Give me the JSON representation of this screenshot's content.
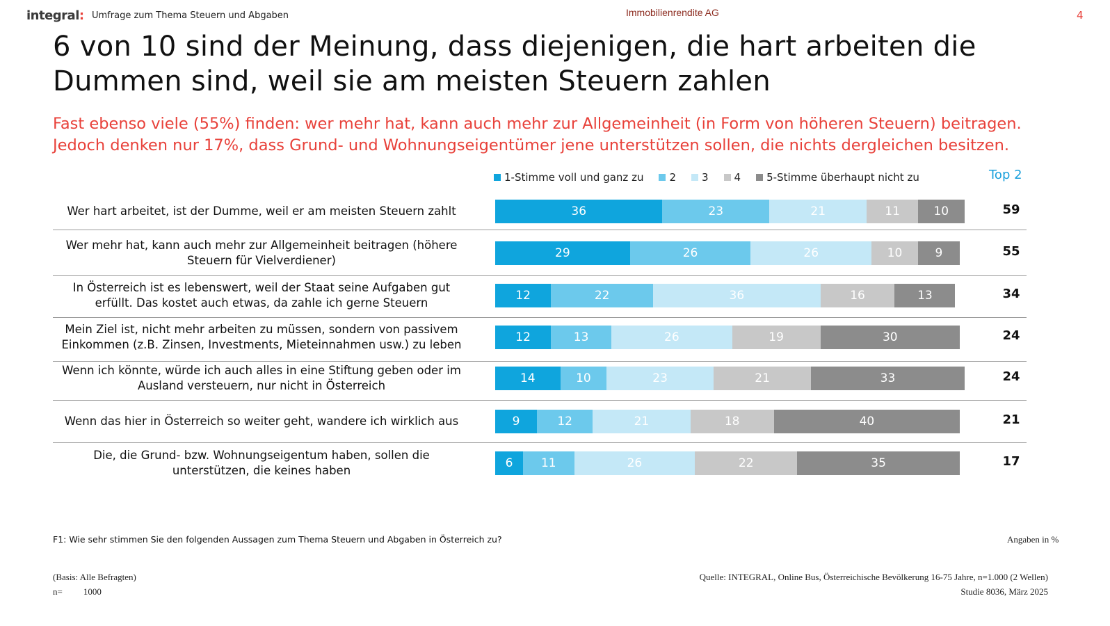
{
  "header": {
    "logo": "integral",
    "logo_dot": ":",
    "survey_title": "Umfrage zum Thema Steuern und Abgaben",
    "company": "Immobilienrendite AG",
    "page_number": "4"
  },
  "title_lines": [
    "6 von 10 sind der Meinung, dass diejenigen, die hart arbeiten die",
    "Dummen sind, weil sie am meisten Steuern zahlen"
  ],
  "subtitle_lines": [
    "Fast ebenso viele (55%) finden: wer mehr hat, kann auch mehr zur Allgemeinheit (in Form von höheren Steuern) beitragen.",
    "Jedoch denken nur 17%, dass Grund- und Wohnungseigentümer jene unterstützen sollen, die nichts dergleichen besitzen."
  ],
  "colors": {
    "s1": "#0fa5dd",
    "s2": "#6cc9ec",
    "s3": "#c4e8f7",
    "s4": "#c8c8c8",
    "s5": "#8c8c8c",
    "accent_red": "#e8413a",
    "top2_blue": "#1aa0dc"
  },
  "chart_data": {
    "type": "bar",
    "orientation": "horizontal",
    "stacked": true,
    "legend": [
      "1-Stimme voll und ganz zu",
      "2",
      "3",
      "4",
      "5-Stimme überhaupt nicht zu"
    ],
    "legend_position": "top",
    "top2_header": "Top 2",
    "categories": [
      "Wer hart arbeitet, ist der Dumme, weil er am meisten Steuern zahlt",
      "Wer mehr hat, kann auch mehr zur Allgemeinheit beitragen (höhere Steuern für Vielverdiener)",
      "In Österreich ist es lebenswert, weil der Staat seine Aufgaben gut erfüllt. Das kostet auch etwas, da zahle ich gerne Steuern",
      "Mein Ziel ist, nicht mehr arbeiten zu müssen, sondern von passivem Einkommen (z.B. Zinsen, Investments, Mieteinnahmen usw.) zu leben",
      "Wenn ich könnte, würde ich auch alles in eine Stiftung geben oder im Ausland versteuern, nur nicht in Österreich",
      "Wenn das hier in Österreich so weiter geht, wandere ich wirklich aus",
      "Die, die Grund- bzw. Wohnungseigentum haben, sollen die unterstützen, die keines haben"
    ],
    "category_lines": [
      [
        "Wer hart arbeitet, ist der Dumme, weil er am meisten Steuern zahlt"
      ],
      [
        "Wer mehr hat, kann auch mehr zur Allgemeinheit beitragen (höhere",
        "Steuern für Vielverdiener)"
      ],
      [
        "In Österreich ist es lebenswert, weil der Staat seine Aufgaben gut",
        "erfüllt. Das kostet auch etwas, da zahle ich gerne Steuern"
      ],
      [
        "Mein Ziel ist, nicht mehr arbeiten zu müssen, sondern von passivem",
        "Einkommen (z.B. Zinsen, Investments, Mieteinnahmen usw.) zu leben"
      ],
      [
        "Wenn ich könnte, würde ich auch alles in eine Stiftung geben oder im",
        "Ausland versteuern, nur nicht in Österreich"
      ],
      [
        "Wenn das hier in Österreich so weiter geht, wandere ich wirklich aus"
      ],
      [
        "Die, die Grund- bzw. Wohnungseigentum haben, sollen die",
        "unterstützen, die keines haben"
      ]
    ],
    "series": [
      {
        "name": "1-Stimme voll und ganz zu",
        "values": [
          36,
          29,
          12,
          12,
          14,
          9,
          6
        ]
      },
      {
        "name": "2",
        "values": [
          23,
          26,
          22,
          13,
          10,
          12,
          11
        ]
      },
      {
        "name": "3",
        "values": [
          21,
          26,
          36,
          26,
          23,
          21,
          26
        ]
      },
      {
        "name": "4",
        "values": [
          11,
          10,
          16,
          19,
          21,
          18,
          22
        ]
      },
      {
        "name": "5-Stimme überhaupt nicht zu",
        "values": [
          10,
          9,
          13,
          30,
          33,
          40,
          35
        ]
      }
    ],
    "top2": [
      59,
      55,
      34,
      24,
      24,
      21,
      17
    ],
    "unit": "%"
  },
  "footer": {
    "question": "F1: Wie sehr stimmen Sie den folgenden Aussagen zum Thema Steuern und Abgaben in Österreich zu?",
    "unit_note": "Angaben in %",
    "basis": "(Basis: Alle Befragten)",
    "n_label": "n=",
    "n_value": "1000",
    "source": "Quelle: INTEGRAL, Online Bus,  Österreichische Bevölkerung 16-75 Jahre, n=1.000 (2 Wellen)",
    "study": "Studie 8036, März 2025"
  }
}
